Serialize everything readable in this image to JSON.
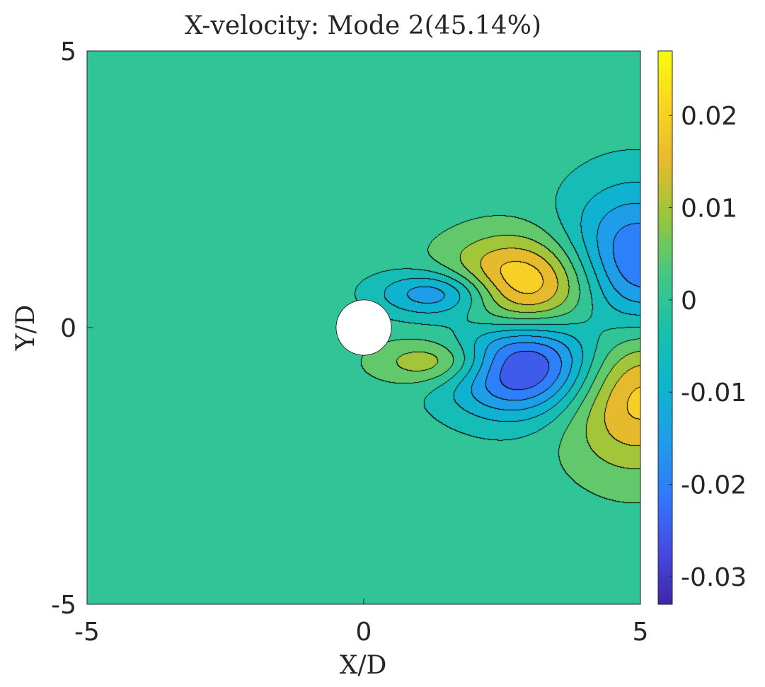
{
  "chart_data": {
    "type": "heatmap",
    "title": "X-velocity: Mode 2(45.14%)",
    "xlabel": "X/D",
    "ylabel": "Y/D",
    "xlim": [
      -5,
      5
    ],
    "ylim": [
      -5,
      5
    ],
    "x_ticks": [
      "-5",
      "0",
      "5"
    ],
    "y_ticks": [
      "-5",
      "0",
      "5"
    ],
    "x_tick_values": [
      -5,
      0,
      5
    ],
    "y_tick_values": [
      -5,
      0,
      5
    ],
    "colorbar": {
      "range": [
        -0.033,
        0.027
      ],
      "ticks": [
        "-0.03",
        "-0.02",
        "-0.01",
        "0",
        "0.01",
        "0.02"
      ],
      "tick_values": [
        -0.03,
        -0.02,
        -0.01,
        0,
        0.01,
        0.02
      ],
      "colormap": "parula"
    },
    "background_value": 0.0,
    "cylinder": {
      "center": [
        0,
        0
      ],
      "diameter": 1
    },
    "structures": [
      {
        "cx": 1.4,
        "cy": 0.62,
        "rx": 1.1,
        "ry": 0.42,
        "peak": -0.02
      },
      {
        "cx": 1.4,
        "cy": -0.62,
        "rx": 1.1,
        "ry": 0.42,
        "peak": 0.016
      },
      {
        "cx": 2.85,
        "cy": 0.72,
        "rx": 1.35,
        "ry": 0.9,
        "peak": 0.027
      },
      {
        "cx": 2.85,
        "cy": -0.65,
        "rx": 1.35,
        "ry": 0.9,
        "peak": -0.033
      },
      {
        "cx": 4.9,
        "cy": 1.1,
        "rx": 1.3,
        "ry": 1.4,
        "peak": -0.025
      },
      {
        "cx": 4.9,
        "cy": -1.1,
        "rx": 1.3,
        "ry": 1.4,
        "peak": 0.022
      }
    ],
    "contour_levels": [
      -0.0275,
      -0.0225,
      -0.0175,
      -0.0125,
      -0.0075,
      -0.0025,
      0.0025,
      0.0075,
      0.0125,
      0.0175,
      0.0225
    ]
  }
}
